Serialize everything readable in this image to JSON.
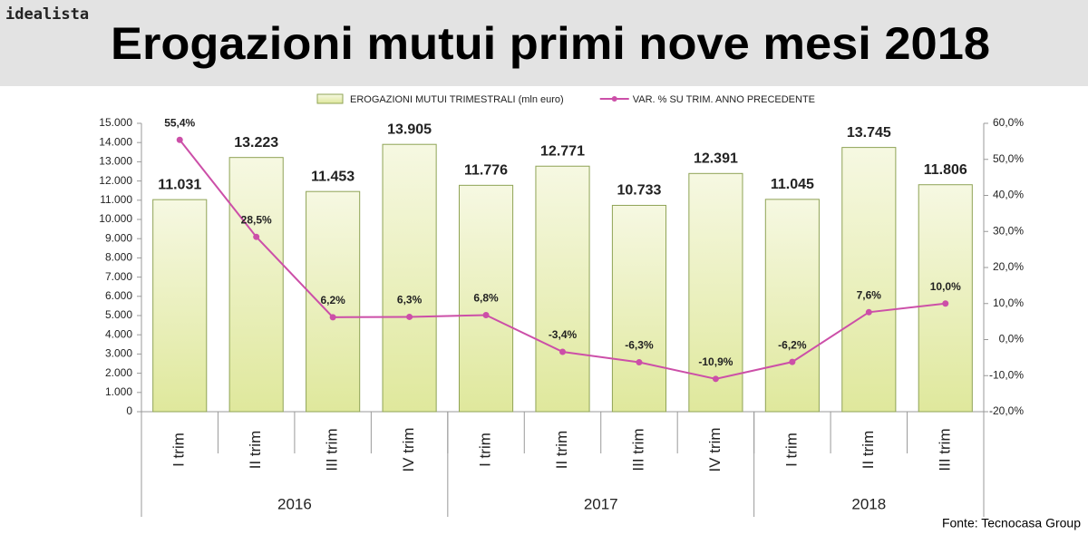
{
  "header": {
    "brand": "idealista"
  },
  "source": "Fonte: Tecnocasa Group",
  "chart_data": {
    "type": "bar",
    "title": "Erogazioni mutui primi nove mesi 2018",
    "categories": [
      "I trim",
      "II trim",
      "III trim",
      "IV trim",
      "I trim",
      "II trim",
      "III trim",
      "IV trim",
      "I trim",
      "II trim",
      "III trim"
    ],
    "groups": [
      {
        "name": "2016",
        "count": 4
      },
      {
        "name": "2017",
        "count": 4
      },
      {
        "name": "2018",
        "count": 3
      }
    ],
    "series": [
      {
        "name": "EROGAZIONI MUTUI TRIMESTRALI (mln euro)",
        "type": "bar",
        "color": "#e4eba6",
        "stroke": "#8fa356",
        "values": [
          11031,
          13223,
          11453,
          13905,
          11776,
          12771,
          10733,
          12391,
          11045,
          13745,
          11806
        ],
        "value_labels": [
          "11.031",
          "13.223",
          "11.453",
          "13.905",
          "11.776",
          "12.771",
          "10.733",
          "12.391",
          "11.045",
          "13.745",
          "11.806"
        ]
      },
      {
        "name": "VAR. % SU TRIM. ANNO PRECEDENTE",
        "type": "line",
        "axis": "y2",
        "color": "#cc4fa8",
        "values": [
          55.4,
          28.5,
          6.2,
          6.3,
          6.8,
          -3.4,
          -6.3,
          -10.9,
          -6.2,
          7.6,
          10.0
        ],
        "value_labels": [
          "55,4%",
          "28,5%",
          "6,2%",
          "6,3%",
          "6,8%",
          "-3,4%",
          "-6,3%",
          "-10,9%",
          "-6,2%",
          "7,6%",
          "10,0%"
        ]
      }
    ],
    "ylim": [
      0,
      15000
    ],
    "yticks": [
      0,
      {
        "value": 1000,
        "label": "1.000"
      },
      {
        "value": 2000,
        "label": "2.000"
      },
      {
        "value": 3000,
        "label": "3.000"
      },
      {
        "value": 4000,
        "label": "4.000"
      },
      {
        "value": 5000,
        "label": "5.000"
      },
      {
        "value": 6000,
        "label": "6.000"
      },
      {
        "value": 7000,
        "label": "7.000"
      },
      {
        "value": 8000,
        "label": "8.000"
      },
      {
        "value": 9000,
        "label": "9.000"
      },
      {
        "value": 10000,
        "label": "10.000"
      },
      {
        "value": 11000,
        "label": "11.000"
      },
      {
        "value": 12000,
        "label": "12.000"
      },
      {
        "value": 13000,
        "label": "13.000"
      },
      {
        "value": 14000,
        "label": "14.000"
      },
      {
        "value": 15000,
        "label": "15.000"
      }
    ],
    "y2lim": [
      -20,
      60
    ],
    "y2ticks": [
      {
        "value": -20,
        "label": "-20,0%"
      },
      {
        "value": -10,
        "label": "-10,0%"
      },
      {
        "value": 0,
        "label": "0,0%"
      },
      {
        "value": 10,
        "label": "10,0%"
      },
      {
        "value": 20,
        "label": "20,0%"
      },
      {
        "value": 30,
        "label": "30,0%"
      },
      {
        "value": 40,
        "label": "40,0%"
      },
      {
        "value": 50,
        "label": "50,0%"
      },
      {
        "value": 60,
        "label": "60,0%"
      }
    ],
    "legend": "top"
  }
}
